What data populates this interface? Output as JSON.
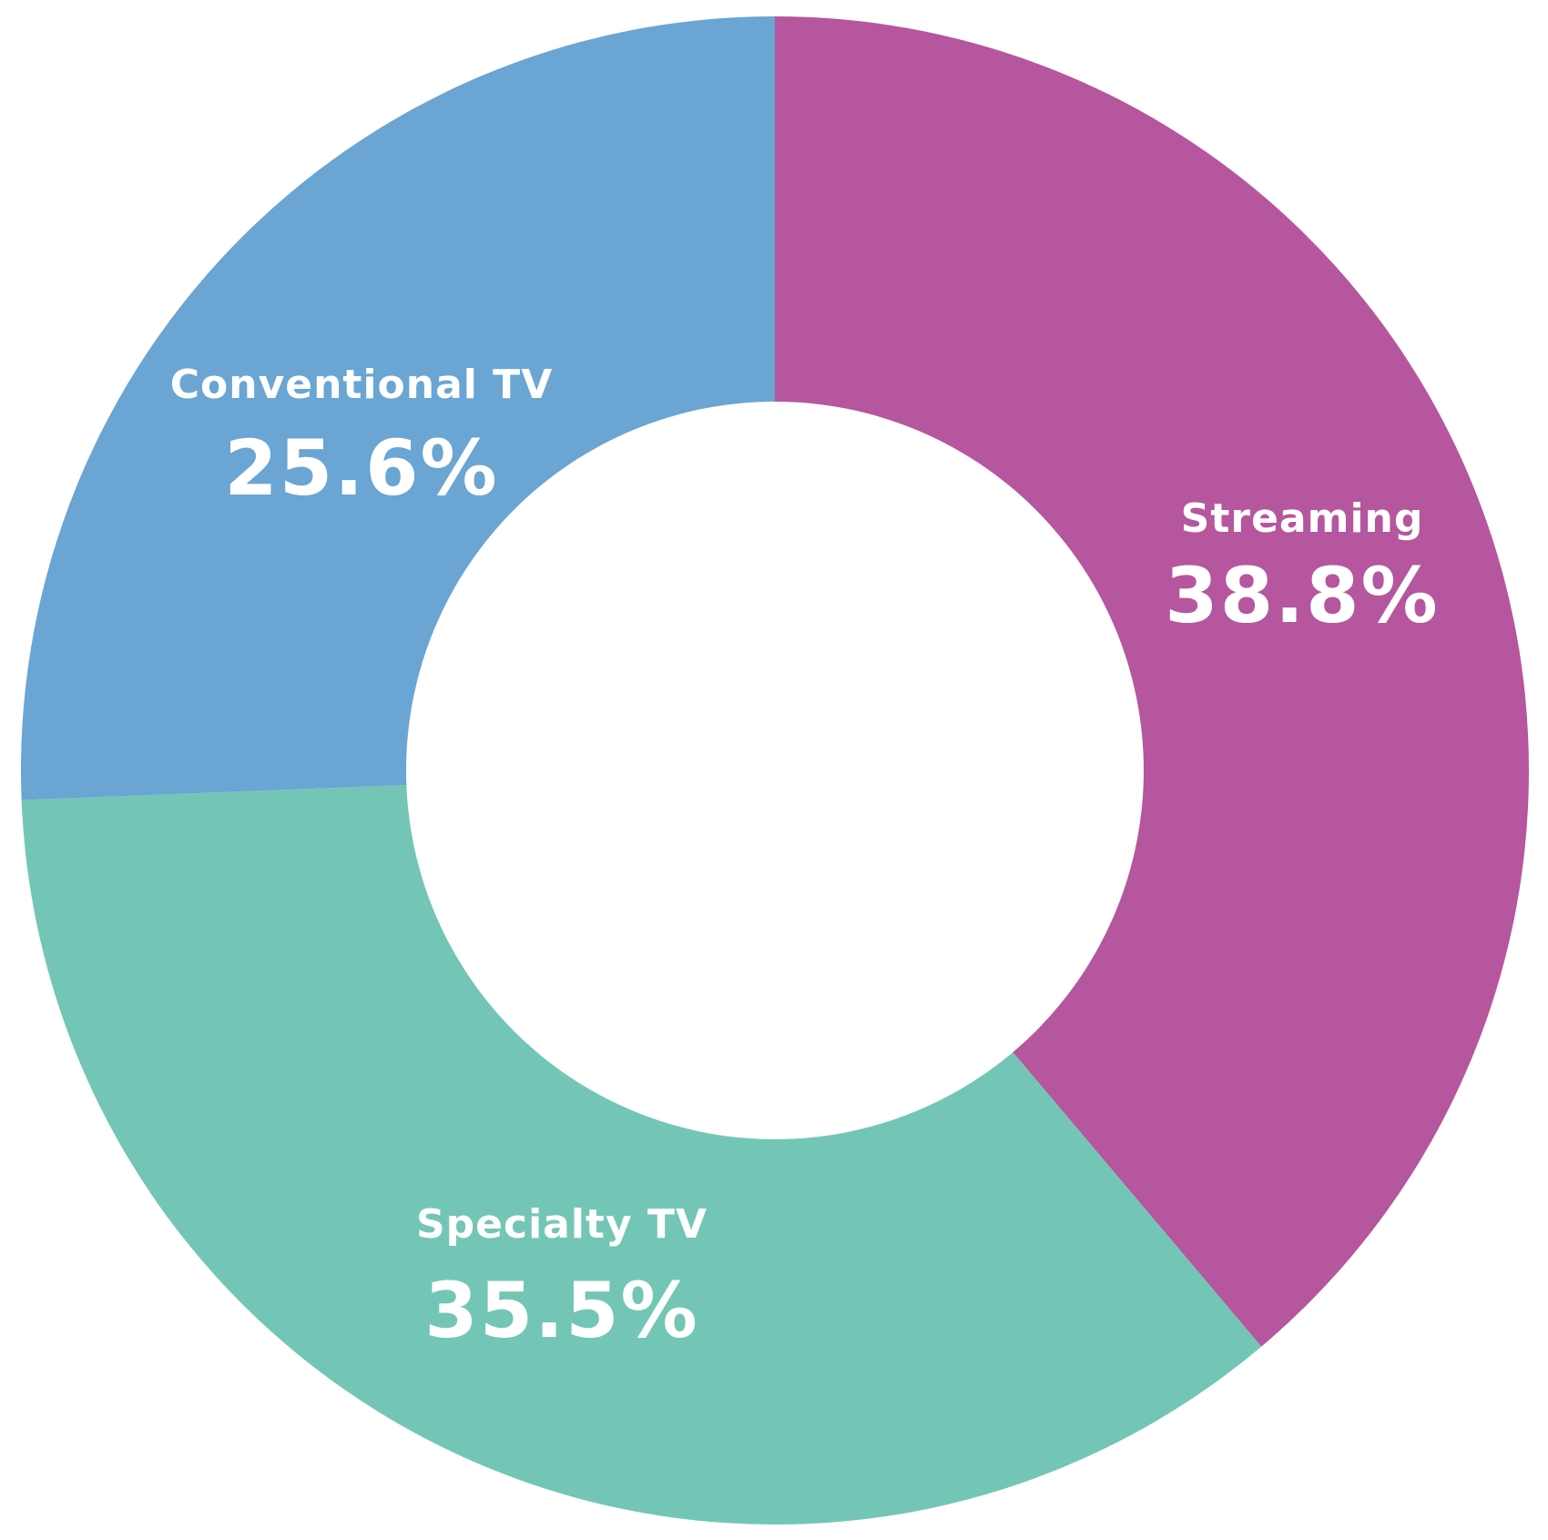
{
  "chart_data": {
    "type": "pie",
    "style": "donut",
    "start_angle_deg": 0,
    "direction": "clockwise",
    "slices": [
      {
        "label": "Streaming",
        "value": 38.8,
        "value_label": "38.8%",
        "color": "#b5569e"
      },
      {
        "label": "Specialty TV",
        "value": 35.5,
        "value_label": "35.5%",
        "color": "#73c6b5"
      },
      {
        "label": "Conventional TV",
        "value": 25.6,
        "value_label": "25.6%",
        "color": "#6aa5d3"
      }
    ]
  }
}
